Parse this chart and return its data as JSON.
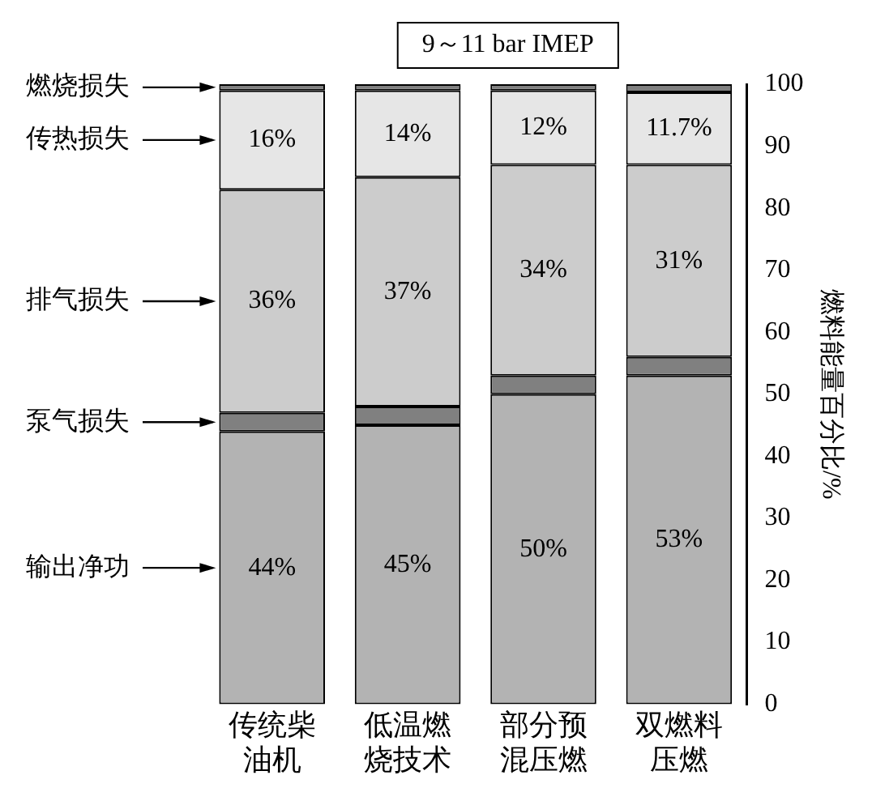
{
  "chart_data": {
    "type": "bar",
    "stacked": true,
    "title": "9～11 bar IMEP",
    "ylabel": "燃料能量百分比/%",
    "categories": [
      "传统柴油机",
      "低温燃烧技术",
      "部分预混压燃",
      "双燃料压燃"
    ],
    "legend": "left",
    "ylim": [
      0,
      100
    ],
    "yticks": [
      0,
      10,
      20,
      30,
      40,
      50,
      60,
      70,
      80,
      90,
      100
    ],
    "grid": false,
    "series": [
      {
        "name": "输出净功",
        "color": "#b3b3b3",
        "values": [
          44,
          45,
          50,
          53
        ],
        "value_labels": [
          "44%",
          "45%",
          "50%",
          "53%"
        ]
      },
      {
        "name": "泵气损失",
        "color": "#808080",
        "values": [
          3,
          3,
          3,
          3
        ],
        "value_labels": [
          null,
          null,
          null,
          null
        ]
      },
      {
        "name": "排气损失",
        "color": "#cccccc",
        "values": [
          36,
          37,
          34,
          31
        ],
        "value_labels": [
          "36%",
          "37%",
          "34%",
          "31%"
        ]
      },
      {
        "name": "传热损失",
        "color": "#e6e6e6",
        "values": [
          16,
          14,
          12,
          11.7
        ],
        "value_labels": [
          "16%",
          "14%",
          "12%",
          "11.7%"
        ]
      },
      {
        "name": "燃烧损失",
        "color": "#808080",
        "values": [
          1,
          1,
          1,
          1.3
        ],
        "value_labels": [
          null,
          null,
          null,
          null
        ]
      }
    ]
  }
}
